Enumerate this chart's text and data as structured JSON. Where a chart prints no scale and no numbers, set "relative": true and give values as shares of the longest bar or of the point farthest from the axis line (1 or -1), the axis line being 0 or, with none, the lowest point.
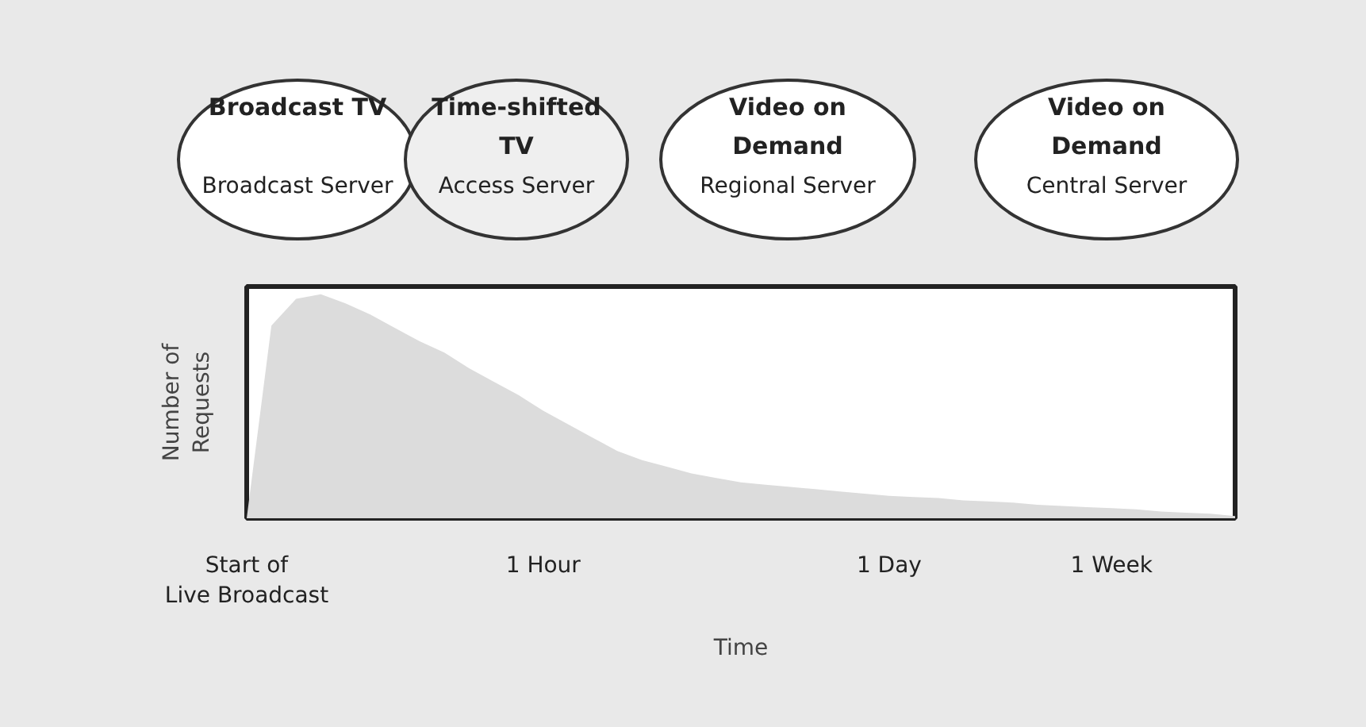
{
  "chart_data": {
    "type": "area",
    "relative": true,
    "categories": [
      "Start of\nLive Broadcast",
      null,
      null,
      null,
      null,
      null,
      null,
      null,
      null,
      null,
      null,
      null,
      "1 Hour",
      null,
      null,
      null,
      null,
      null,
      null,
      null,
      null,
      null,
      null,
      null,
      null,
      null,
      "1 Day",
      null,
      null,
      null,
      null,
      null,
      null,
      null,
      null,
      "1 Week",
      null,
      null,
      null,
      null,
      null
    ],
    "values": [
      0,
      0.86,
      0.98,
      1.0,
      0.96,
      0.91,
      0.85,
      0.79,
      0.74,
      0.67,
      0.61,
      0.55,
      0.48,
      0.42,
      0.36,
      0.3,
      0.26,
      0.23,
      0.2,
      0.18,
      0.16,
      0.15,
      0.14,
      0.13,
      0.12,
      0.11,
      0.1,
      0.095,
      0.09,
      0.08,
      0.075,
      0.07,
      0.06,
      0.055,
      0.05,
      0.045,
      0.04,
      0.03,
      0.025,
      0.02,
      0.01
    ],
    "color": "#dcdcdc",
    "xlabel": "Time",
    "ylabel": "Number of\nRequests",
    "tick_labels": "x",
    "grid": false,
    "annotations": [
      "Broadcast TV",
      "Broadcast Server",
      "Time-shifted\nTV",
      "Access Server",
      "Video on\nDemand",
      "Regional Server",
      "Video on\nDemand",
      "Central Server"
    ]
  }
}
